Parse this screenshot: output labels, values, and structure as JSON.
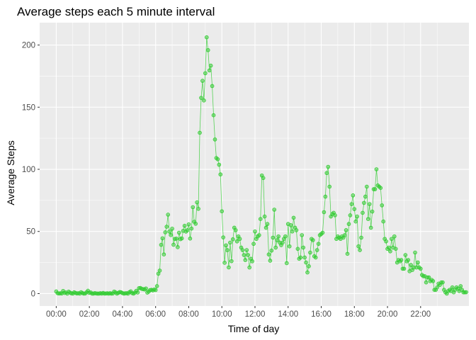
{
  "chart_data": {
    "type": "line",
    "title": "Average steps each 5 minute interval",
    "xlabel": "Time of day",
    "ylabel": "Average Steps",
    "x_unit": "minutes",
    "xlim": [
      -60,
      1495
    ],
    "ylim": [
      -10,
      218
    ],
    "x_ticks": [
      {
        "value": 0,
        "label": "00:00"
      },
      {
        "value": 120,
        "label": "02:00"
      },
      {
        "value": 240,
        "label": "04:00"
      },
      {
        "value": 360,
        "label": "06:00"
      },
      {
        "value": 480,
        "label": "08:00"
      },
      {
        "value": 600,
        "label": "10:00"
      },
      {
        "value": 720,
        "label": "12:00"
      },
      {
        "value": 840,
        "label": "14:00"
      },
      {
        "value": 960,
        "label": "16:00"
      },
      {
        "value": 1080,
        "label": "18:00"
      },
      {
        "value": 1200,
        "label": "20:00"
      },
      {
        "value": 1320,
        "label": "22:00"
      }
    ],
    "y_ticks": [
      {
        "value": 0,
        "label": "0"
      },
      {
        "value": 50,
        "label": "50"
      },
      {
        "value": 100,
        "label": "100"
      },
      {
        "value": 150,
        "label": "150"
      },
      {
        "value": 200,
        "label": "200"
      }
    ],
    "grid": true,
    "panel_color": "#ebebeb",
    "grid_color": "#ffffff",
    "series_color": "#33cc33",
    "series": [
      {
        "values": [
          1.7,
          0.3,
          0.1,
          0.2,
          0.1,
          2.1,
          0.5,
          0.9,
          0.0,
          1.5,
          0.8,
          0.2,
          0.0,
          1.0,
          0.5,
          0.1,
          0.3,
          0.0,
          1.1,
          0.4,
          0.0,
          0.1,
          1.0,
          2.3,
          0.6,
          0.9,
          0.0,
          0.0,
          0.4,
          0.1,
          0.0,
          0.0,
          0.3,
          0.0,
          0.5,
          0.0,
          0.1,
          0.2,
          0.0,
          0.3,
          0.0,
          0.1,
          1.6,
          0.9,
          0.0,
          0.6,
          1.2,
          1.0,
          0.4,
          0.0,
          0.2,
          0.3,
          0.0,
          1.1,
          1.8,
          0.4,
          0.0,
          0.8,
          2.2,
          0.9,
          4.4,
          4.5,
          3.8,
          3.6,
          3.3,
          4.1,
          0.8,
          1.5,
          2.8,
          3.0,
          2.6,
          3.3,
          2.8,
          6.0,
          16.0,
          18.5,
          39.2,
          44.5,
          31.5,
          49.3,
          53.8,
          63.5,
          49.9,
          47.1,
          52.2,
          39.3,
          44.0,
          44.2,
          37.4,
          49.0,
          43.8,
          44.4,
          50.5,
          54.5,
          49.9,
          51.0,
          55.7,
          44.3,
          52.3,
          69.5,
          57.8,
          56.2,
          73.4,
          68.2,
          129.4,
          157.5,
          171.2,
          155.4,
          177.3,
          206.2,
          195.9,
          179.6,
          183.4,
          167.0,
          143.5,
          124.0,
          109.1,
          108.1,
          103.7,
          95.9,
          66.2,
          45.2,
          24.8,
          38.8,
          34.98,
          21.06,
          40.98,
          26.1,
          43.66,
          53.0,
          51.0,
          42.0,
          46.0,
          44.0,
          37.0,
          35.0,
          31.0,
          27.0,
          35.0,
          31.0,
          21.0,
          28.0,
          26.0,
          40.0,
          50.0,
          44.0,
          46.0,
          47.0,
          60.0,
          95.0,
          93.0,
          62.0,
          53.0,
          56.0,
          31.5,
          26.5,
          34.6,
          45.0,
          67.5,
          37.0,
          43.0,
          46.0,
          41.0,
          39.0,
          41.0,
          44.0,
          46.0,
          24.5,
          56.0,
          38.0,
          55.0,
          50.0,
          61.0,
          53.0,
          51.0,
          36.0,
          28.0,
          29.0,
          47.0,
          37.0,
          29.0,
          25.0,
          17.0,
          22.0,
          33.0,
          44.0,
          43.0,
          30.0,
          29.0,
          35.0,
          40.0,
          47.0,
          48.0,
          49.0,
          65.5,
          78.0,
          97.0,
          102.0,
          86.0,
          62.0,
          64.0,
          65.0,
          63.0,
          44.0,
          46.0,
          45.0,
          44.0,
          46.0,
          45.0,
          47.0,
          51.0,
          32.0,
          56.0,
          63.0,
          72.0,
          79.0,
          68.0,
          58.0,
          62.0,
          38.0,
          35.0,
          45.0,
          65.0,
          73.0,
          78.0,
          86.0,
          60.0,
          72.0,
          53.0,
          66.0,
          84.0,
          84.0,
          100.0,
          87.0,
          86.0,
          85.0,
          71.0,
          58.0,
          44.0,
          42.0,
          36.0,
          37.0,
          34.0,
          44.0,
          37.0,
          46.0,
          36.0,
          25.0,
          27.0,
          26.0,
          27.0,
          20.0,
          20.0,
          31.0,
          26.0,
          27.0,
          18.0,
          23.0,
          19.0,
          21.0,
          33.0,
          21.0,
          25.0,
          21.0,
          20.0,
          15.0,
          14.0,
          14.0,
          9.0,
          13.0,
          13.0,
          10.0,
          11.0,
          10.0,
          3.0,
          3.0,
          5.0,
          8.0,
          7.0,
          9.0,
          9.0,
          3.0,
          1.0,
          0.0,
          2.0,
          3.0,
          2.0,
          5.0,
          1.0,
          3.0,
          5.0,
          4.0,
          2.0,
          6.0,
          3.0,
          1.0,
          1.0,
          1.1
        ]
      }
    ]
  }
}
